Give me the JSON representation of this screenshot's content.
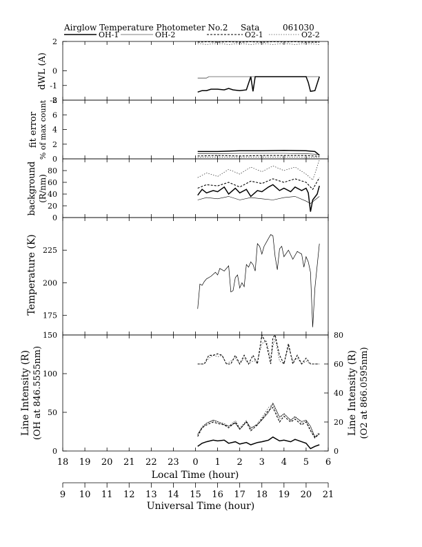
{
  "header": {
    "title": "Airglow Temperature Photometer No.2",
    "site": "Sata",
    "date": "061030"
  },
  "legend": [
    {
      "label": "OH-1",
      "color": "#000000",
      "style": "thick"
    },
    {
      "label": "OH-2",
      "color": "#000000",
      "style": "thin"
    },
    {
      "label": "O2-1",
      "color": "#000000",
      "style": "dashed"
    },
    {
      "label": "O2-2",
      "color": "#000000",
      "style": "dotted"
    }
  ],
  "x_axes": {
    "local_label": "Local Time (hour)",
    "local_ticks": [
      "18",
      "19",
      "20",
      "21",
      "22",
      "23",
      "0",
      "1",
      "2",
      "3",
      "4",
      "5",
      "6"
    ],
    "ut_label": "Universal Time (hour)",
    "ut_ticks": [
      "9",
      "10",
      "11",
      "12",
      "13",
      "14",
      "15",
      "16",
      "17",
      "18",
      "19",
      "20",
      "21"
    ]
  },
  "chart_data": [
    {
      "type": "line",
      "ylabel": "dWL (A)",
      "ylim": [
        -2,
        2
      ],
      "yticks": [
        "2",
        "0",
        "-1",
        "-2"
      ],
      "x_range": [
        9,
        21
      ],
      "series": [
        {
          "name": "OH-1",
          "x": [
            15.1,
            15.3,
            15.5,
            15.7,
            16.0,
            16.3,
            16.5,
            16.7,
            17.0,
            17.3,
            17.5,
            17.6,
            17.7,
            17.8,
            18.0,
            18.5,
            19.0,
            19.5,
            20.0,
            20.1,
            20.2,
            20.4,
            20.6
          ],
          "y": [
            -1.45,
            -1.35,
            -1.35,
            -1.25,
            -1.25,
            -1.3,
            -1.2,
            -1.3,
            -1.35,
            -1.3,
            -0.4,
            -1.4,
            -0.4,
            -0.4,
            -0.4,
            -0.4,
            -0.4,
            -0.4,
            -0.4,
            -0.8,
            -1.4,
            -1.35,
            -0.4
          ]
        },
        {
          "name": "OH-2",
          "x": [
            15.1,
            15.5,
            15.6,
            16.0,
            17.0,
            18.0,
            19.0,
            20.0,
            20.6
          ],
          "y": [
            -0.5,
            -0.5,
            -0.4,
            -0.4,
            -0.4,
            -0.4,
            -0.4,
            -0.4,
            -0.4
          ]
        },
        {
          "name": "O2-1",
          "x": [
            15.1,
            15.5,
            16.0,
            16.5,
            17.0,
            17.5,
            18.0,
            18.5,
            19.0,
            19.5,
            20.0,
            20.6
          ],
          "y": [
            1.95,
            1.98,
            1.95,
            1.98,
            1.95,
            1.98,
            1.95,
            1.98,
            1.96,
            1.98,
            1.95,
            1.95
          ]
        },
        {
          "name": "O2-2",
          "x": [
            15.1,
            15.5,
            16.0,
            16.5,
            17.0,
            17.5,
            18.0,
            18.5,
            19.0,
            19.5,
            20.0,
            20.6
          ],
          "y": [
            1.85,
            1.8,
            1.85,
            1.8,
            1.85,
            1.8,
            1.85,
            1.8,
            1.85,
            1.8,
            1.85,
            1.8
          ]
        }
      ]
    },
    {
      "type": "line",
      "ylabel": "fit error",
      "ylabel2": "% of max count",
      "ylim": [
        0,
        8
      ],
      "yticks": [
        "8",
        "6",
        "4",
        "2",
        "0"
      ],
      "x_range": [
        9,
        21
      ],
      "series": [
        {
          "name": "OH-1",
          "x": [
            15.1,
            16.0,
            17.0,
            18.0,
            19.0,
            20.0,
            20.4,
            20.6
          ],
          "y": [
            1.0,
            1.0,
            1.1,
            1.1,
            1.15,
            1.1,
            1.0,
            0.5
          ]
        },
        {
          "name": "OH-2",
          "x": [
            15.1,
            16.0,
            17.0,
            18.0,
            19.0,
            20.0,
            20.6
          ],
          "y": [
            0.7,
            0.7,
            0.75,
            0.75,
            0.75,
            0.7,
            0.6
          ]
        },
        {
          "name": "O2-1",
          "x": [
            15.1,
            16.0,
            17.0,
            18.0,
            19.0,
            20.0,
            20.6
          ],
          "y": [
            0.4,
            0.45,
            0.4,
            0.45,
            0.45,
            0.45,
            0.35
          ]
        },
        {
          "name": "O2-2",
          "x": [
            15.1,
            16.0,
            17.0,
            18.0,
            19.0,
            20.0,
            20.6
          ],
          "y": [
            0.2,
            0.25,
            0.2,
            0.25,
            0.25,
            0.2,
            0.2
          ]
        }
      ]
    },
    {
      "type": "line",
      "ylabel": "background",
      "ylabel2": "(R/nm)",
      "ylim": [
        0,
        100
      ],
      "yticks": [
        "80",
        "60",
        "40",
        "20",
        "0"
      ],
      "x_range": [
        9,
        21
      ],
      "series": [
        {
          "name": "OH-1",
          "x": [
            15.1,
            15.3,
            15.5,
            15.8,
            16.0,
            16.3,
            16.5,
            16.8,
            17.0,
            17.3,
            17.5,
            17.8,
            18.0,
            18.3,
            18.5,
            18.8,
            19.0,
            19.3,
            19.5,
            19.8,
            20.0,
            20.1,
            20.2,
            20.3,
            20.5,
            20.6
          ],
          "y": [
            38,
            48,
            42,
            46,
            44,
            52,
            40,
            50,
            42,
            48,
            36,
            46,
            44,
            52,
            56,
            46,
            50,
            44,
            52,
            46,
            50,
            42,
            10,
            30,
            40,
            54
          ]
        },
        {
          "name": "OH-2",
          "x": [
            15.1,
            15.5,
            16.0,
            16.5,
            17.0,
            17.5,
            18.0,
            18.5,
            19.0,
            19.5,
            20.0,
            20.2,
            20.4,
            20.6
          ],
          "y": [
            30,
            34,
            32,
            36,
            30,
            34,
            32,
            30,
            34,
            36,
            28,
            24,
            30,
            36
          ]
        },
        {
          "name": "O2-1",
          "x": [
            15.1,
            15.5,
            16.0,
            16.5,
            17.0,
            17.5,
            18.0,
            18.5,
            19.0,
            19.5,
            20.0,
            20.3,
            20.6
          ],
          "y": [
            50,
            56,
            54,
            60,
            52,
            62,
            58,
            66,
            60,
            66,
            60,
            48,
            68
          ]
        },
        {
          "name": "O2-2",
          "x": [
            15.1,
            15.5,
            16.0,
            16.5,
            17.0,
            17.5,
            18.0,
            18.5,
            19.0,
            19.5,
            20.0,
            20.3,
            20.6
          ],
          "y": [
            68,
            76,
            70,
            82,
            74,
            86,
            78,
            88,
            80,
            86,
            74,
            64,
            98
          ]
        }
      ]
    },
    {
      "type": "line",
      "ylabel": "Temperature (K)",
      "ylim": [
        160,
        250
      ],
      "yticks": [
        "225",
        "200",
        "175"
      ],
      "x_range": [
        9,
        21
      ],
      "series": [
        {
          "name": "OH",
          "x": [
            15.1,
            15.2,
            15.3,
            15.4,
            15.5,
            15.7,
            15.9,
            16.0,
            16.1,
            16.3,
            16.5,
            16.6,
            16.7,
            16.8,
            16.9,
            17.0,
            17.1,
            17.2,
            17.3,
            17.4,
            17.5,
            17.6,
            17.7,
            17.8,
            17.9,
            18.0,
            18.1,
            18.2,
            18.3,
            18.4,
            18.5,
            18.6,
            18.7,
            18.8,
            18.9,
            19.0,
            19.2,
            19.4,
            19.6,
            19.8,
            19.9,
            20.0,
            20.1,
            20.2,
            20.3,
            20.4,
            20.6
          ],
          "y": [
            180,
            199,
            198,
            201,
            203,
            205,
            208,
            206,
            211,
            209,
            213,
            193,
            194,
            204,
            206,
            196,
            200,
            197,
            214,
            212,
            216,
            214,
            209,
            230,
            228,
            222,
            228,
            231,
            234,
            237,
            236,
            220,
            210,
            226,
            228,
            220,
            225,
            218,
            224,
            222,
            212,
            220,
            216,
            208,
            166,
            196,
            230
          ]
        }
      ]
    },
    {
      "type": "line",
      "ylabel": "Line Intensity (R)",
      "ylabel2": "(OH at 846.5555nm)",
      "ylim": [
        0,
        150
      ],
      "yticks": [
        "150",
        "100",
        "50",
        "0"
      ],
      "y2label": "Line Intensity (R)",
      "y2label2": "(O2 at 866.0595nm)",
      "y2lim": [
        0,
        80
      ],
      "y2ticks": [
        "80",
        "60",
        "40",
        "20",
        "0"
      ],
      "x_range": [
        9,
        21
      ],
      "series": [
        {
          "name": "OH-1",
          "axis": "left",
          "x": [
            15.1,
            15.3,
            15.5,
            15.8,
            16.0,
            16.3,
            16.5,
            16.8,
            17.0,
            17.3,
            17.5,
            17.8,
            18.0,
            18.3,
            18.5,
            18.8,
            19.0,
            19.3,
            19.5,
            19.8,
            20.0,
            20.2,
            20.4,
            20.6
          ],
          "y": [
            6,
            10,
            12,
            14,
            13,
            14,
            10,
            12,
            9,
            11,
            8,
            11,
            12,
            14,
            18,
            13,
            14,
            12,
            15,
            12,
            10,
            3,
            6,
            8
          ]
        },
        {
          "name": "OH-2",
          "axis": "left",
          "x": [
            15.1,
            15.3,
            15.5,
            15.8,
            16.0,
            16.3,
            16.5,
            16.8,
            17.0,
            17.3,
            17.5,
            17.8,
            18.0,
            18.3,
            18.5,
            18.8,
            19.0,
            19.3,
            19.5,
            19.8,
            20.0,
            20.2,
            20.4,
            20.6
          ],
          "y": [
            22,
            30,
            36,
            40,
            38,
            34,
            32,
            36,
            28,
            38,
            30,
            34,
            40,
            50,
            62,
            44,
            48,
            40,
            44,
            38,
            40,
            32,
            18,
            22
          ]
        },
        {
          "name": "O2-1",
          "axis": "right",
          "x": [
            15.1,
            15.3,
            15.5,
            15.8,
            16.0,
            16.3,
            16.5,
            16.8,
            17.0,
            17.3,
            17.5,
            17.8,
            18.0,
            18.3,
            18.5,
            18.8,
            19.0,
            19.3,
            19.5,
            19.8,
            20.0,
            20.2,
            20.4,
            20.6
          ],
          "y": [
            10,
            16,
            18,
            20,
            19,
            18,
            16,
            20,
            15,
            20,
            14,
            18,
            22,
            28,
            30,
            20,
            24,
            20,
            22,
            18,
            20,
            14,
            9,
            12
          ]
        },
        {
          "name": "O2-2",
          "axis": "right",
          "x": [
            15.1,
            15.3,
            15.5,
            15.8,
            16.0,
            16.3,
            16.5,
            16.8,
            17.0,
            17.3,
            17.5,
            17.8,
            18.0,
            18.3,
            18.5,
            18.8,
            19.0,
            19.3,
            19.5,
            19.8,
            20.0,
            20.2,
            20.4,
            20.6
          ],
          "y": [
            11,
            17,
            19,
            21,
            20,
            19,
            17,
            21,
            16,
            21,
            15,
            19,
            23,
            30,
            32,
            22,
            26,
            21,
            24,
            19,
            21,
            15,
            10,
            13
          ]
        },
        {
          "name": "O2-1 (upper)",
          "axis": "right",
          "x": [
            15.1,
            15.4,
            15.6,
            15.8,
            16.0,
            16.2,
            16.4,
            16.6,
            16.8,
            17.0,
            17.2,
            17.4,
            17.6,
            17.8,
            18.0,
            18.2,
            18.4,
            18.5,
            18.6,
            18.8,
            19.0,
            19.2,
            19.4,
            19.6,
            19.8,
            20.0,
            20.2,
            20.6
          ],
          "y": [
            60,
            60,
            66,
            66,
            67,
            66,
            60,
            60,
            66,
            60,
            66,
            60,
            66,
            60,
            80,
            74,
            60,
            78,
            80,
            66,
            60,
            74,
            60,
            66,
            60,
            64,
            60,
            60
          ]
        },
        {
          "name": "O2-2 (upper)",
          "axis": "right",
          "x": [
            15.1,
            15.4,
            15.6,
            15.8,
            16.0,
            16.2,
            16.4,
            16.6,
            16.8,
            17.0,
            17.2,
            17.4,
            17.6,
            17.8,
            18.0,
            18.2,
            18.4,
            18.5,
            18.6,
            18.8,
            19.0,
            19.2,
            19.4,
            19.6,
            19.8,
            20.0,
            20.2,
            20.6
          ],
          "y": [
            60,
            60,
            64,
            66,
            65,
            66,
            60,
            62,
            64,
            60,
            64,
            60,
            62,
            62,
            74,
            76,
            64,
            72,
            78,
            62,
            60,
            72,
            62,
            64,
            60,
            62,
            60,
            60
          ]
        }
      ]
    }
  ]
}
